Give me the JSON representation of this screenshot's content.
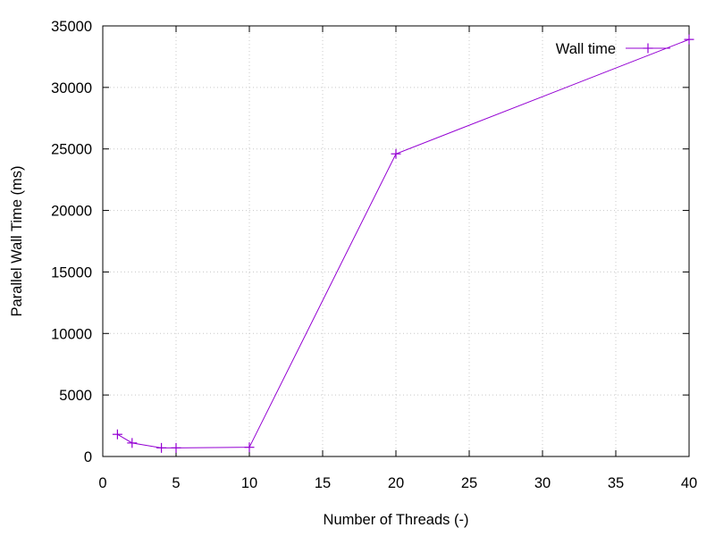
{
  "chart_data": {
    "type": "line",
    "title": "",
    "xlabel": "Number of Threads (-)",
    "ylabel": "Parallel Wall Time (ms)",
    "xlim": [
      0,
      40
    ],
    "ylim": [
      0,
      35000
    ],
    "xticks": [
      0,
      5,
      10,
      15,
      20,
      25,
      30,
      35,
      40
    ],
    "yticks": [
      0,
      5000,
      10000,
      15000,
      20000,
      25000,
      30000,
      35000
    ],
    "grid": true,
    "legend_position": "top-right",
    "series": [
      {
        "name": "Wall time",
        "color": "#9400d3",
        "marker": "plus",
        "x": [
          1,
          2,
          4,
          5,
          10,
          20,
          40
        ],
        "y": [
          1800,
          1100,
          700,
          700,
          750,
          24600,
          33900
        ]
      }
    ]
  }
}
